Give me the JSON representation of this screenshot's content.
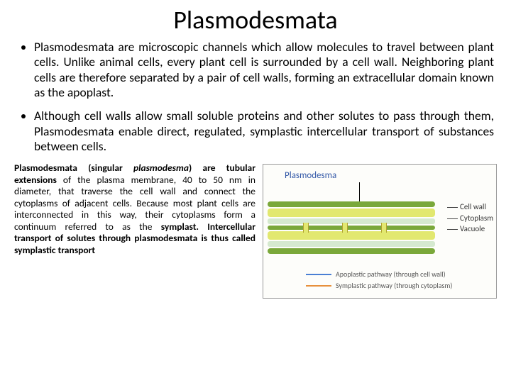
{
  "title": "Plasmodesmata",
  "bullets": {
    "b1": "Plasmodesmata are microscopic channels which allow molecules to travel between plant cells. Unlike animal cells, every plant cell is surrounded by a cell wall. Neighboring plant cells are therefore separated by a pair of cell walls, forming an extracellular domain known as the apoplast.",
    "b2": "Although cell walls allow small soluble proteins and other solutes to pass through them, Plasmodesmata enable direct, regulated, symplastic intercellular transport of substances between cells."
  },
  "paragraph": {
    "lead_bold": "Plasmodesmata (singular ",
    "lead_italic": "plasmodesma",
    "lead_bold2": ") are tubular extensions",
    "rest": " of the plasma membrane, 40 to 50 nm in diameter, that traverse the cell wall and connect the cytoplasms of adjacent cells. Because most plant cells are interconnected in this way, their cytoplasms form a continuum referred to as the ",
    "bold2": "symplast. Intercellular transport of solutes through plasmodesmata is thus called symplastic transport"
  },
  "diagram": {
    "plasmodesma_label": "Plasmodesma",
    "labels": {
      "cell_wall": "Cell wall",
      "cytoplasm": "Cytoplasm",
      "vacuole": "Vacuole"
    },
    "pathways": {
      "apoplastic": "Apoplastic pathway (through cell wall)",
      "symplastic": "Symplastic pathway (through cytoplasm)"
    },
    "colors": {
      "cell_wall": "#7aa83a",
      "cytoplasm": "#e2e86f",
      "vacuole": "#d5e9cf",
      "apoplast_line": "#4a7fd4",
      "symplast_line": "#e7903c",
      "label_color": "#355aa8"
    }
  }
}
